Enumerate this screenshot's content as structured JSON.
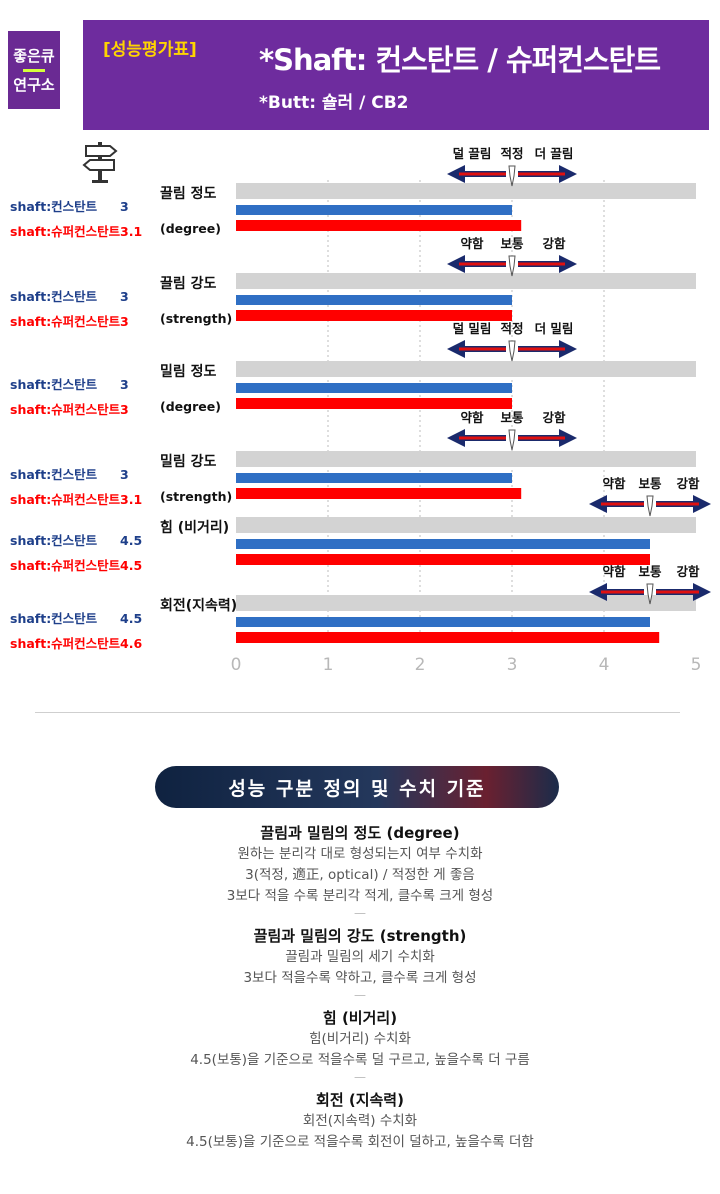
{
  "logo": {
    "line1": "좋은큐",
    "line2": "연구소"
  },
  "header": {
    "badge": "[성능평가표]",
    "title": "*Shaft: 컨스탄트 / 슈퍼컨스탄트",
    "subtitle": "*Butt: 숄러 / CB2"
  },
  "colors": {
    "constant": "#2f6fc4",
    "super": "#ff0000",
    "track": "#d3d3d3",
    "legend_blue": "#1e3f8a"
  },
  "chart_data": {
    "type": "bar",
    "orientation": "horizontal",
    "xlim": [
      0,
      5
    ],
    "xticks": [
      "0",
      "1",
      "2",
      "3",
      "4",
      "5"
    ],
    "categories": [
      {
        "label": "끌림 정도",
        "sublabel": "(degree)",
        "scale": [
          "덜 끌림",
          "적정",
          "더 끌림"
        ],
        "center": 3
      },
      {
        "label": "끌림 강도",
        "sublabel": "(strength)",
        "scale": [
          "약함",
          "보통",
          "강함"
        ],
        "center": 3
      },
      {
        "label": "밀림 정도",
        "sublabel": "(degree)",
        "scale": [
          "덜 밀림",
          "적정",
          "더 밀림"
        ],
        "center": 3
      },
      {
        "label": "밀림 강도",
        "sublabel": "(strength)",
        "scale": [
          "약함",
          "보통",
          "강함"
        ],
        "center": 3
      },
      {
        "label": "힘 (비거리)",
        "sublabel": "",
        "scale": [
          "약함",
          "보통",
          "강함"
        ],
        "center": 4.5
      },
      {
        "label": "회전(지속력)",
        "sublabel": "",
        "scale": [
          "약함",
          "보통",
          "강함"
        ],
        "center": 4.5
      }
    ],
    "series": [
      {
        "name": "shaft:컨스탄트",
        "values": [
          3,
          3,
          3,
          3,
          4.5,
          4.5
        ],
        "labels": [
          "3",
          "3",
          "3",
          "3",
          "4.5",
          "4.5"
        ]
      },
      {
        "name": "shaft:슈퍼컨스탄트",
        "values": [
          3.1,
          3,
          3,
          3.1,
          4.5,
          4.6
        ],
        "labels": [
          "3.1",
          "3",
          "3",
          "3.1",
          "4.5",
          "4.6"
        ]
      }
    ]
  },
  "definitions": {
    "banner": "성능 구분 정의 및 수치 기준",
    "sections": [
      {
        "title": "끌림과 밀림의 정도 (degree)",
        "lines": [
          "원하는 분리각 대로 형성되는지 여부 수치화",
          "3(적정, 適正, optical) / 적정한 게 좋음",
          "3보다 적을 수록 분리각 적게, 클수록 크게 형성"
        ]
      },
      {
        "title": "끌림과 밀림의 강도 (strength)",
        "lines": [
          "끌림과 밀림의 세기 수치화",
          "3보다 적을수록 약하고, 클수록 크게 형성"
        ]
      },
      {
        "title": "힘 (비거리)",
        "lines": [
          "힘(비거리) 수치화",
          "4.5(보통)을 기준으로 적을수록 덜 구르고, 높을수록 더 구름"
        ]
      },
      {
        "title": "회전 (지속력)",
        "lines": [
          "회전(지속력) 수치화",
          "4.5(보통)을 기준으로 적을수록 회전이 덜하고, 높을수록 더함"
        ]
      }
    ]
  }
}
